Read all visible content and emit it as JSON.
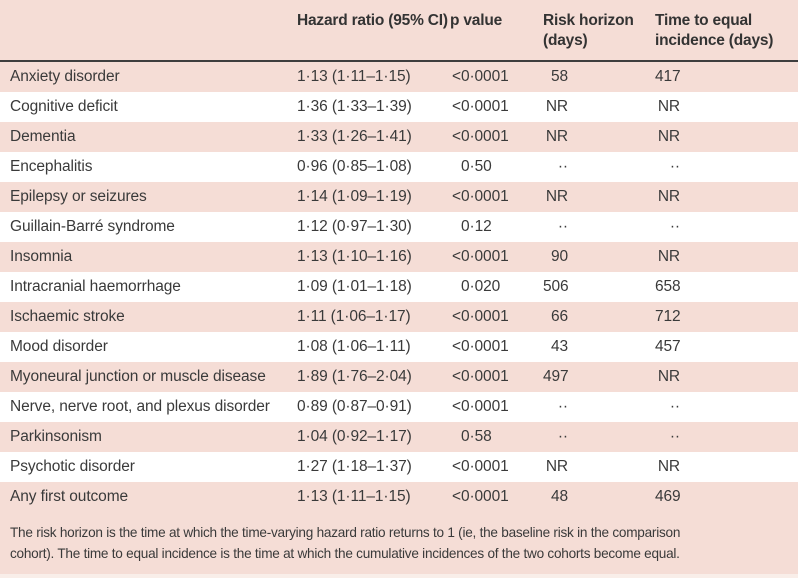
{
  "table": {
    "columns": [
      {
        "label": ""
      },
      {
        "label": "Hazard ratio (95% CI)"
      },
      {
        "label": "p value"
      },
      {
        "label": "Risk horizon (days)"
      },
      {
        "label": "Time to equal incidence (days)"
      }
    ],
    "rows": [
      [
        "Anxiety disorder",
        "1·13 (1·11–1·15)",
        "<0·0001",
        "58",
        "417"
      ],
      [
        "Cognitive deficit",
        "1·36 (1·33–1·39)",
        "<0·0001",
        "NR",
        "NR"
      ],
      [
        "Dementia",
        "1·33 (1·26–1·41)",
        "<0·0001",
        "NR",
        "NR"
      ],
      [
        "Encephalitis",
        "0·96 (0·85–1·08)",
        "0·50",
        "··",
        "··"
      ],
      [
        "Epilepsy or seizures",
        "1·14 (1·09–1·19)",
        "<0·0001",
        "NR",
        "NR"
      ],
      [
        "Guillain-Barré syndrome",
        "1·12 (0·97–1·30)",
        "0·12",
        "··",
        "··"
      ],
      [
        "Insomnia",
        "1·13 (1·10–1·16)",
        "<0·0001",
        "90",
        "NR"
      ],
      [
        "Intracranial haemorrhage",
        "1·09 (1·01–1·18)",
        "0·020",
        "506",
        "658"
      ],
      [
        "Ischaemic stroke",
        "1·11 (1·06–1·17)",
        "<0·0001",
        "66",
        "712"
      ],
      [
        "Mood disorder",
        "1·08 (1·06–1·11)",
        "<0·0001",
        "43",
        "457"
      ],
      [
        "Myoneural junction or muscle disease",
        "1·89 (1·76–2·04)",
        "<0·0001",
        "497",
        "NR"
      ],
      [
        "Nerve, nerve root, and plexus disorder",
        "0·89 (0·87–0·91)",
        "<0·0001",
        "··",
        "··"
      ],
      [
        "Parkinsonism",
        "1·04 (0·92–1·17)",
        "0·58",
        "··",
        "··"
      ],
      [
        "Psychotic disorder",
        "1·27 (1·18–1·37)",
        "<0·0001",
        "NR",
        "NR"
      ],
      [
        "Any first outcome",
        "1·13 (1·11–1·15)",
        "<0·0001",
        "48",
        "469"
      ]
    ],
    "footnote": {
      "line1": "The risk horizon is the time at which the time-varying hazard ratio returns to 1 (ie, the baseline risk in the comparison",
      "line2": "cohort). The time to equal incidence is the time at which the cumulative incidences of the two cohorts become equal."
    }
  },
  "colors": {
    "row_pink": "#f5ddd6",
    "row_white": "#ffffff",
    "header_rule": "#3e3e3e",
    "text": "#3a3a3a"
  }
}
